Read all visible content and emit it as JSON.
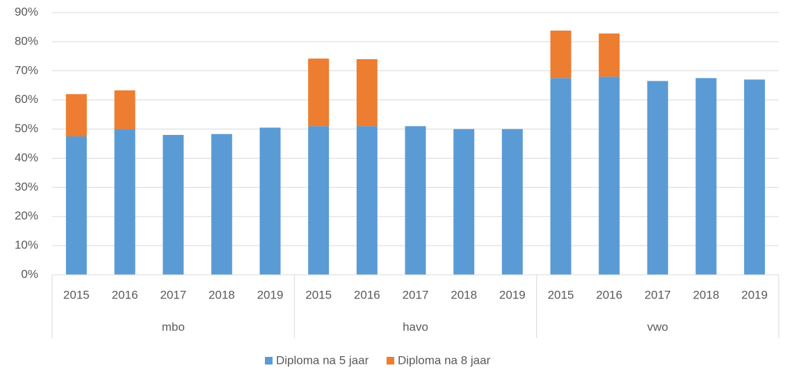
{
  "chart_data": {
    "type": "stacked_bar",
    "categories": [
      "2015",
      "2016",
      "2017",
      "2018",
      "2019",
      "2015",
      "2016",
      "2017",
      "2018",
      "2019",
      "2015",
      "2016",
      "2017",
      "2018",
      "2019"
    ],
    "groups": [
      "mbo",
      "havo",
      "vwo"
    ],
    "series": [
      {
        "name": "Diploma na 5 jaar",
        "color": "#5b9bd5",
        "values": [
          47.5,
          50,
          48,
          48.3,
          50.5,
          51,
          51,
          51,
          50,
          50,
          67.5,
          68,
          66.5,
          67.5,
          67
        ]
      },
      {
        "name": "Diploma na 8 jaar",
        "color": "#ed7d31",
        "values": [
          14.5,
          13.3,
          null,
          null,
          null,
          23.2,
          23,
          null,
          null,
          null,
          16.3,
          14.8,
          null,
          null,
          null
        ]
      }
    ],
    "ylim": [
      0,
      90
    ],
    "yticks": [
      {
        "value": 0,
        "label": "0%"
      },
      {
        "value": 10,
        "label": "10%"
      },
      {
        "value": 20,
        "label": "20%"
      },
      {
        "value": 30,
        "label": "30%"
      },
      {
        "value": 40,
        "label": "40%"
      },
      {
        "value": 50,
        "label": "50%"
      },
      {
        "value": 60,
        "label": "60%"
      },
      {
        "value": 70,
        "label": "70%"
      },
      {
        "value": 80,
        "label": "80%"
      },
      {
        "value": 90,
        "label": "90%"
      }
    ],
    "grid": true,
    "legend": "bottom"
  }
}
